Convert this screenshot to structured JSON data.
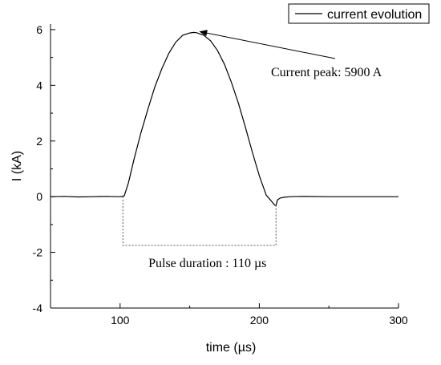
{
  "chart_data": {
    "type": "line",
    "xlabel": "time (µs)",
    "ylabel": "I (kA)",
    "xlim": [
      50,
      300
    ],
    "ylim": [
      -4,
      6.2
    ],
    "x_ticks": [
      100,
      200,
      300
    ],
    "y_ticks": [
      -4,
      -2,
      0,
      2,
      4,
      6
    ],
    "grid": false,
    "legend": {
      "position": "top-right"
    },
    "series": [
      {
        "name": "current evolution",
        "color": "#000000",
        "x": [
          50,
          60,
          70,
          80,
          90,
          100,
          103,
          106,
          110,
          115,
          120,
          125,
          130,
          135,
          140,
          145,
          150,
          153,
          155,
          160,
          165,
          170,
          175,
          180,
          185,
          190,
          195,
          200,
          205,
          208,
          211,
          212,
          213,
          215,
          218,
          222,
          230,
          250,
          270,
          300
        ],
        "y": [
          0,
          0.01,
          -0.01,
          0,
          0.01,
          0,
          0.03,
          0.5,
          1.35,
          2.3,
          3.15,
          3.95,
          4.6,
          5.15,
          5.55,
          5.8,
          5.88,
          5.9,
          5.89,
          5.8,
          5.6,
          5.25,
          4.75,
          4.1,
          3.35,
          2.5,
          1.6,
          0.75,
          0.05,
          -0.12,
          -0.3,
          -0.32,
          -0.12,
          -0.05,
          -0.02,
          0,
          0.01,
          0,
          0,
          0
        ]
      }
    ],
    "annotations": [
      {
        "text": "Current peak: 5900 A",
        "points_to": {
          "x": 155,
          "y": 5.9
        }
      },
      {
        "text": "Pulse duration : 110 µs",
        "bracket": {
          "x_start": 102,
          "x_end": 212,
          "y": -1.75
        }
      }
    ]
  }
}
